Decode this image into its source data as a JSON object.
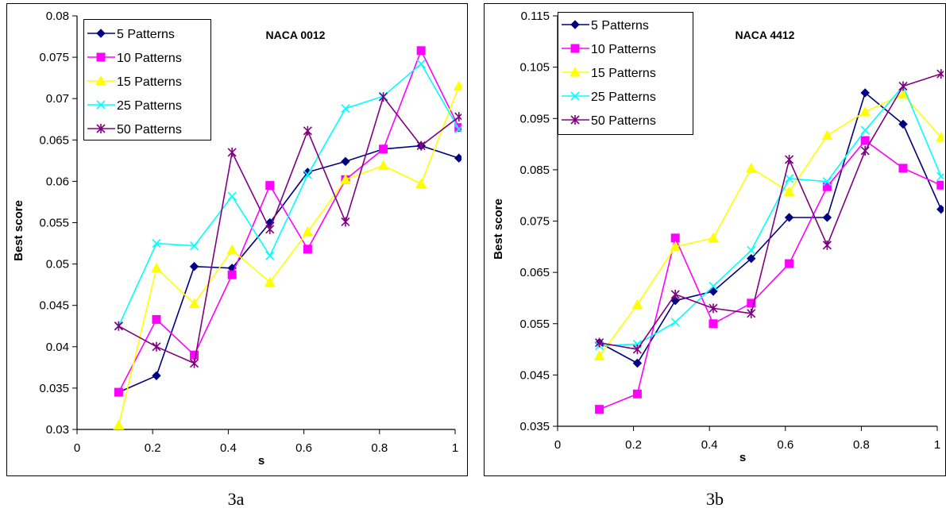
{
  "chart_data": [
    {
      "type": "line",
      "title": "NACA 0012",
      "xlabel": "s",
      "ylabel": "Best score",
      "caption": "3a",
      "xlim": [
        0,
        1
      ],
      "ylim": [
        0.03,
        0.08
      ],
      "xticks": [
        0,
        0.2,
        0.4,
        0.6,
        0.8,
        1
      ],
      "xtick_labels": [
        "0",
        "0.2",
        "0.4",
        "0.6",
        "0.8",
        "1"
      ],
      "yticks": [
        0.03,
        0.035,
        0.04,
        0.045,
        0.05,
        0.055,
        0.06,
        0.065,
        0.07,
        0.075,
        0.08
      ],
      "ytick_labels": [
        "0.03",
        "0.035",
        "0.04",
        "0.045",
        "0.05",
        "0.055",
        "0.06",
        "0.065",
        "0.07",
        "0.075",
        "0.08"
      ],
      "grid": false,
      "legend_position": "top-left",
      "x": [
        0.11,
        0.21,
        0.31,
        0.41,
        0.51,
        0.61,
        0.71,
        0.81,
        0.91,
        1.01
      ],
      "series": [
        {
          "name": "5 Patterns",
          "color": "#000080",
          "marker": "diamond",
          "values": [
            0.0345,
            0.0365,
            0.0497,
            0.0495,
            0.055,
            0.0611,
            0.0624,
            0.0639,
            0.0643,
            0.0628
          ]
        },
        {
          "name": "10 Patterns",
          "color": "#ff00ff",
          "marker": "square",
          "values": [
            0.0345,
            0.0433,
            0.039,
            0.0487,
            0.0595,
            0.0518,
            0.0602,
            0.0639,
            0.0758,
            0.0665
          ]
        },
        {
          "name": "15 Patterns",
          "color": "#ffff00",
          "marker": "triangle",
          "values": [
            0.0305,
            0.0495,
            0.0452,
            0.0517,
            0.0478,
            0.0539,
            0.0602,
            0.0619,
            0.0597,
            0.0715
          ]
        },
        {
          "name": "25 Patterns",
          "color": "#00ffff",
          "marker": "x",
          "values": [
            0.0425,
            0.0525,
            0.0522,
            0.0582,
            0.051,
            0.0608,
            0.0688,
            0.0703,
            0.0742,
            0.0663
          ]
        },
        {
          "name": "50 Patterns",
          "color": "#800080",
          "marker": "star",
          "values": [
            0.0425,
            0.04,
            0.038,
            0.0635,
            0.0542,
            0.0661,
            0.0551,
            0.0702,
            0.0643,
            0.0678
          ]
        }
      ]
    },
    {
      "type": "line",
      "title": "NACA 4412",
      "xlabel": "s",
      "ylabel": "Best score",
      "caption": "3b",
      "xlim": [
        0,
        1
      ],
      "ylim": [
        0.035,
        0.115
      ],
      "xticks": [
        0,
        0.2,
        0.4,
        0.6,
        0.8,
        1
      ],
      "xtick_labels": [
        "0",
        "0.2",
        "0.4",
        "0.6",
        "0.8",
        "1"
      ],
      "yticks": [
        0.035,
        0.045,
        0.055,
        0.065,
        0.075,
        0.085,
        0.095,
        0.105,
        0.115
      ],
      "ytick_labels": [
        "0.035",
        "0.045",
        "0.055",
        "0.065",
        "0.075",
        "0.085",
        "0.095",
        "0.105",
        "0.115"
      ],
      "grid": false,
      "legend_position": "top-left",
      "x": [
        0.11,
        0.21,
        0.31,
        0.41,
        0.51,
        0.61,
        0.71,
        0.81,
        0.91,
        1.01
      ],
      "series": [
        {
          "name": "5 Patterns",
          "color": "#000080",
          "marker": "diamond",
          "values": [
            0.0513,
            0.0473,
            0.0595,
            0.0613,
            0.0677,
            0.0757,
            0.0757,
            0.1,
            0.0939,
            0.0773
          ]
        },
        {
          "name": "10 Patterns",
          "color": "#ff00ff",
          "marker": "square",
          "values": [
            0.0383,
            0.0413,
            0.0717,
            0.055,
            0.059,
            0.0667,
            0.0817,
            0.0907,
            0.0853,
            0.082
          ]
        },
        {
          "name": "15 Patterns",
          "color": "#ffff00",
          "marker": "triangle",
          "values": [
            0.0487,
            0.0587,
            0.07,
            0.0717,
            0.0853,
            0.0807,
            0.0917,
            0.0963,
            0.0997,
            0.0913
          ]
        },
        {
          "name": "25 Patterns",
          "color": "#00ffff",
          "marker": "x",
          "values": [
            0.0507,
            0.051,
            0.0553,
            0.0623,
            0.0693,
            0.0833,
            0.0827,
            0.0927,
            0.1013,
            0.0837
          ]
        },
        {
          "name": "50 Patterns",
          "color": "#800080",
          "marker": "star",
          "values": [
            0.0513,
            0.05,
            0.0607,
            0.058,
            0.057,
            0.087,
            0.0703,
            0.0887,
            0.1013,
            0.1037
          ]
        }
      ]
    }
  ]
}
